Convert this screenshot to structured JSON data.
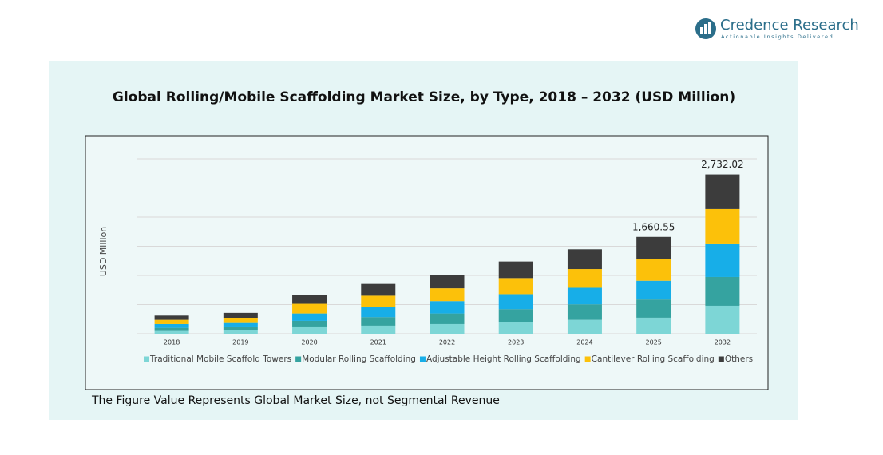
{
  "header": {
    "brand": "Credence Research",
    "tagline": "Actionable Insights Delivered"
  },
  "chart_data": {
    "type": "stacked_bar",
    "title": "Global Rolling/Mobile Scaffolding Market Size, by Type, 2018 – 2032 (USD Million)",
    "y_label": "USD Million",
    "footnote": "The Figure Value Represents Global Market Size, not Segmental Revenue",
    "categories": [
      "2018",
      "2019",
      "2020",
      "2021",
      "2022",
      "2023",
      "2024",
      "2025",
      "2032"
    ],
    "ylim": [
      0,
      3000
    ],
    "grid": true,
    "legend": "bottom",
    "series": [
      {
        "name": "Traditional Mobile Scaffold Towers",
        "color": "#7dd6d6",
        "values": [
          46,
          55,
          110,
          138,
          165,
          202,
          238,
          275,
          480
        ]
      },
      {
        "name": "Modular Rolling Scaffolding",
        "color": "#35a3a0",
        "values": [
          55,
          55,
          110,
          147,
          183,
          220,
          266,
          312,
          493
        ]
      },
      {
        "name": "Adjustable Height Rolling Scaffolding",
        "color": "#17aee8",
        "values": [
          64,
          73,
          128,
          174,
          211,
          257,
          284,
          321,
          562
        ]
      },
      {
        "name": "Cantilever Rolling Scaffolding",
        "color": "#fcc10a",
        "values": [
          73,
          83,
          165,
          193,
          220,
          275,
          321,
          367,
          603
        ]
      },
      {
        "name": "Others",
        "color": "#3c3c3c",
        "values": [
          73,
          92,
          156,
          202,
          229,
          284,
          339,
          385.55,
          594
        ]
      }
    ],
    "totals": [
      null,
      null,
      null,
      null,
      null,
      null,
      null,
      1660.55,
      2732.02
    ],
    "total_labels": [
      null,
      null,
      null,
      null,
      null,
      null,
      null,
      "1,660.55",
      "2,732.02"
    ]
  }
}
